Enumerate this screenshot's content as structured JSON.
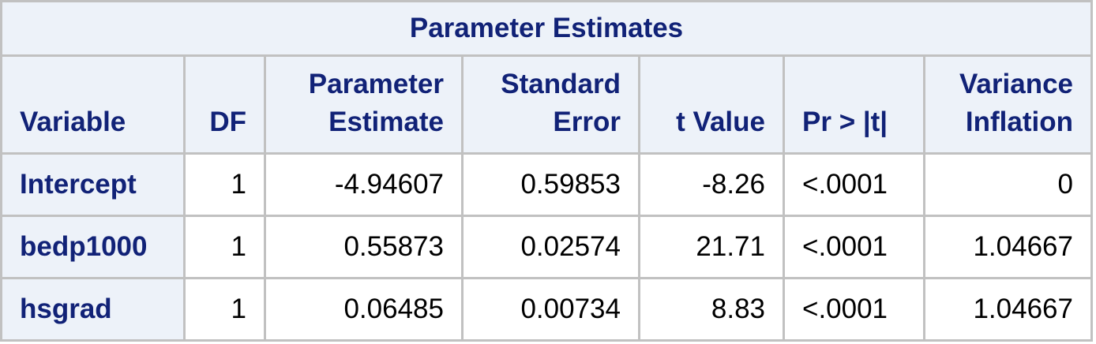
{
  "table": {
    "title": "Parameter Estimates",
    "headers": {
      "variable": "Variable",
      "df": "DF",
      "estimate_line1": "Parameter",
      "estimate_line2": "Estimate",
      "stderr_line1": "Standard",
      "stderr_line2": "Error",
      "tvalue": "t Value",
      "pvalue": "Pr > |t|",
      "vif_line1": "Variance",
      "vif_line2": "Inflation"
    },
    "rows": [
      {
        "variable": "Intercept",
        "df": "1",
        "estimate": "-4.94607",
        "stderr": "0.59853",
        "tvalue": "-8.26",
        "pvalue": "<.0001",
        "vif": "0"
      },
      {
        "variable": "bedp1000",
        "df": "1",
        "estimate": "0.55873",
        "stderr": "0.02574",
        "tvalue": "21.71",
        "pvalue": "<.0001",
        "vif": "1.04667"
      },
      {
        "variable": "hsgrad",
        "df": "1",
        "estimate": "0.06485",
        "stderr": "0.00734",
        "tvalue": "8.83",
        "pvalue": "<.0001",
        "vif": "1.04667"
      }
    ]
  }
}
